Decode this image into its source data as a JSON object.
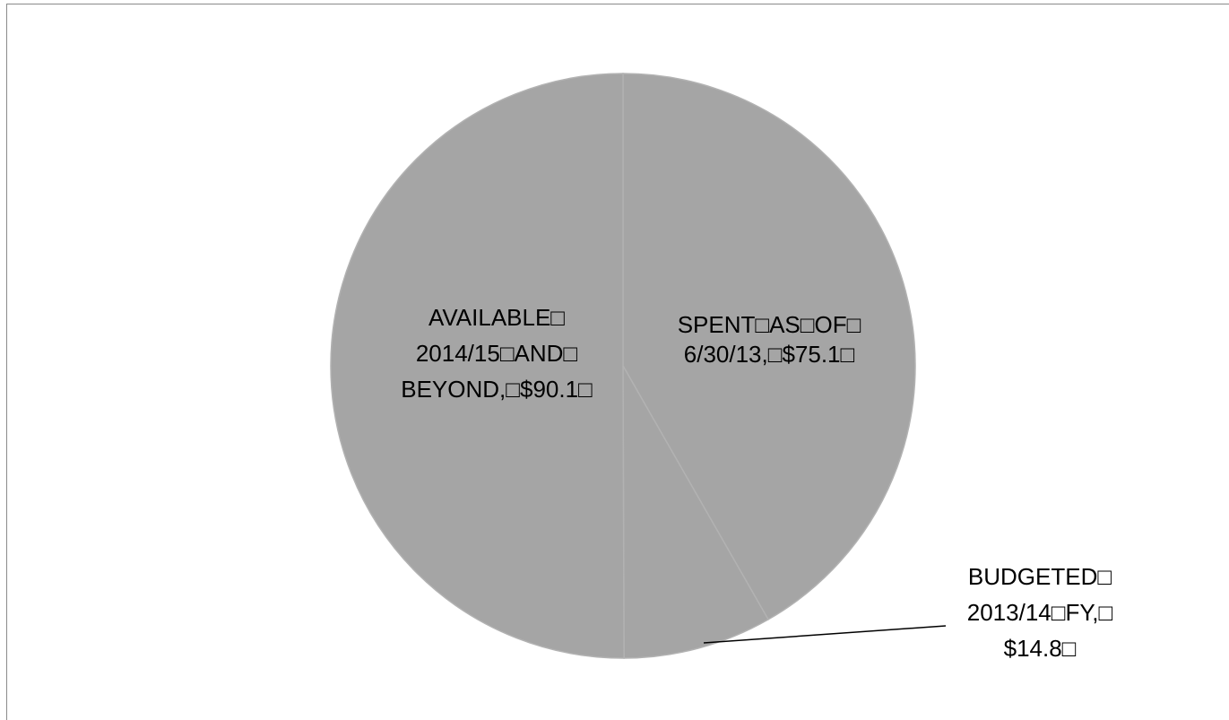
{
  "chart_data": {
    "type": "pie",
    "title": "",
    "slices": [
      {
        "label_lines": [
          "SPENT□AS□OF□",
          "6/30/13,□$75.1□"
        ],
        "value": 75.1
      },
      {
        "label_lines": [
          "BUDGETED□",
          "2013/14□FY,□",
          "$14.8□"
        ],
        "value": 14.8
      },
      {
        "label_lines": [
          "AVAILABLE□",
          "2014/15□AND□",
          "BEYOND,□$90.1□"
        ],
        "value": 90.1
      }
    ],
    "legend": "none",
    "colors": {
      "slice_fill": "#a5a5a5",
      "slice_edge": "#b2b2b2",
      "label_text": "#000000",
      "leader_line": "#000000"
    }
  }
}
